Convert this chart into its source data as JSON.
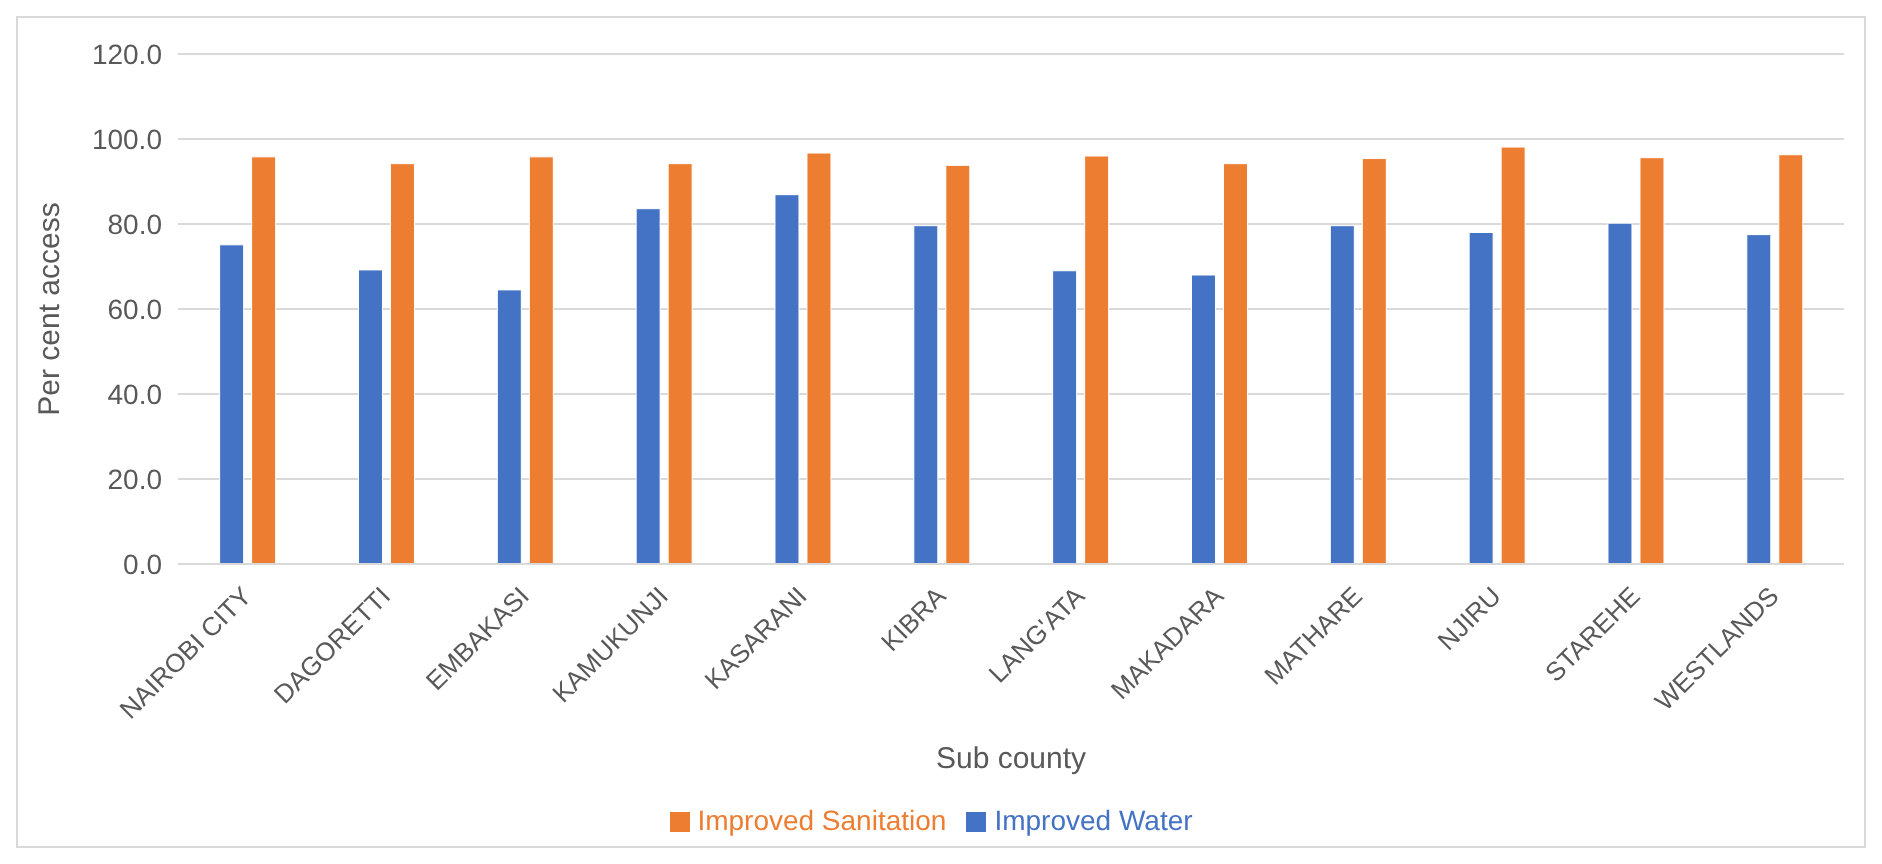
{
  "chart_data": {
    "type": "bar",
    "categories": [
      "NAIROBI CITY",
      "DAGORETTI",
      "EMBAKASI",
      "KAMUKUNJI",
      "KASARANI",
      "KIBRA",
      "LANG'ATA",
      "MAKADARA",
      "MATHARE",
      "NJIRU",
      "STAREHE",
      "WESTLANDS"
    ],
    "series": [
      {
        "name": "Improved Water",
        "color": "#4472c4",
        "values": [
          75.1,
          69.2,
          64.5,
          83.6,
          86.9,
          79.6,
          69.0,
          68.0,
          79.6,
          78.0,
          80.2,
          77.5
        ]
      },
      {
        "name": "Improved Sanitation",
        "color": "#ed7d31",
        "values": [
          95.8,
          94.2,
          95.8,
          94.2,
          96.7,
          93.8,
          96.0,
          94.2,
          95.4,
          98.1,
          95.6,
          96.3
        ]
      }
    ],
    "xlabel": "Sub county",
    "ylabel": "Per cent access",
    "ylim": [
      0,
      120
    ],
    "yticks": [
      {
        "value": 0,
        "label": "0.0"
      },
      {
        "value": 20,
        "label": "20.0"
      },
      {
        "value": 40,
        "label": "40.0"
      },
      {
        "value": 60,
        "label": "60.0"
      },
      {
        "value": 80,
        "label": "80.0"
      },
      {
        "value": 100,
        "label": "100.0"
      },
      {
        "value": 120,
        "label": "120.0"
      }
    ],
    "grid": "y",
    "legend": "bottom"
  }
}
